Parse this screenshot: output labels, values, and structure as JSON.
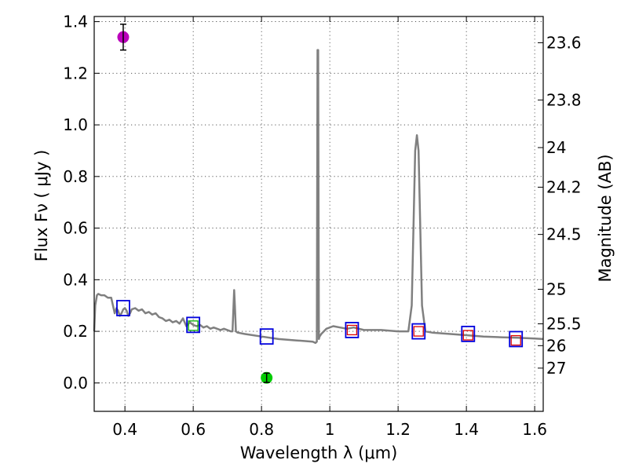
{
  "chart_data": {
    "type": "line",
    "title": "",
    "xlabel": "Wavelength  λ (μm)",
    "ylabel": "Flux  Fν  ( μJy )",
    "right_ylabel": "Magnitude (AB)",
    "xlim": [
      0.31,
      1.625
    ],
    "ylim": [
      -0.11,
      1.42
    ],
    "xticks": [
      0.4,
      0.6,
      0.8,
      1.0,
      1.2,
      1.4,
      1.6
    ],
    "xtick_labels": [
      "0.4",
      "0.6",
      "0.8",
      "1",
      "1.2",
      "1.4",
      "1.6"
    ],
    "yticks": [
      0.0,
      0.2,
      0.4,
      0.6,
      0.8,
      1.0,
      1.2,
      1.4
    ],
    "ytick_labels": [
      "0.0",
      "0.2",
      "0.4",
      "0.6",
      "0.8",
      "1.0",
      "1.2",
      "1.4"
    ],
    "right_ticks": [
      {
        "label": "23.6",
        "value": 23.6
      },
      {
        "label": "23.8",
        "value": 23.8
      },
      {
        "label": "24",
        "value": 24.0
      },
      {
        "label": "24.2",
        "value": 24.2
      },
      {
        "label": "24.5",
        "value": 24.5
      },
      {
        "label": "25",
        "value": 25.0
      },
      {
        "label": "25.5",
        "value": 25.5
      },
      {
        "label": "26",
        "value": 26.0
      },
      {
        "label": "27",
        "value": 27.0
      }
    ],
    "grid": true,
    "series": [
      {
        "name": "model spectrum",
        "kind": "line",
        "color": "#808080",
        "x": [
          0.31,
          0.313,
          0.318,
          0.322,
          0.33,
          0.34,
          0.35,
          0.36,
          0.365,
          0.37,
          0.375,
          0.38,
          0.385,
          0.39,
          0.395,
          0.4,
          0.405,
          0.41,
          0.415,
          0.42,
          0.43,
          0.44,
          0.45,
          0.46,
          0.47,
          0.48,
          0.49,
          0.5,
          0.51,
          0.52,
          0.53,
          0.54,
          0.55,
          0.56,
          0.57,
          0.58,
          0.59,
          0.6,
          0.61,
          0.62,
          0.63,
          0.64,
          0.65,
          0.66,
          0.67,
          0.68,
          0.69,
          0.7,
          0.71,
          0.715,
          0.718,
          0.72,
          0.722,
          0.725,
          0.73,
          0.75,
          0.8,
          0.85,
          0.9,
          0.95,
          0.958,
          0.962,
          0.964,
          0.966,
          0.968,
          0.97,
          0.975,
          0.99,
          1.01,
          1.03,
          1.05,
          1.07,
          1.1,
          1.15,
          1.2,
          1.23,
          1.24,
          1.25,
          1.255,
          1.26,
          1.265,
          1.27,
          1.28,
          1.3,
          1.35,
          1.4,
          1.45,
          1.5,
          1.55,
          1.6,
          1.625
        ],
        "y": [
          0.2,
          0.3,
          0.34,
          0.345,
          0.34,
          0.34,
          0.33,
          0.33,
          0.3,
          0.27,
          0.29,
          0.28,
          0.26,
          0.27,
          0.285,
          0.29,
          0.28,
          0.26,
          0.27,
          0.285,
          0.29,
          0.28,
          0.285,
          0.27,
          0.275,
          0.265,
          0.27,
          0.255,
          0.25,
          0.24,
          0.245,
          0.235,
          0.24,
          0.23,
          0.25,
          0.22,
          0.235,
          0.225,
          0.22,
          0.225,
          0.215,
          0.22,
          0.21,
          0.215,
          0.21,
          0.205,
          0.21,
          0.205,
          0.2,
          0.2,
          0.3,
          0.36,
          0.3,
          0.2,
          0.195,
          0.19,
          0.18,
          0.17,
          0.165,
          0.16,
          0.155,
          0.16,
          1.29,
          1.29,
          0.17,
          0.18,
          0.19,
          0.21,
          0.22,
          0.215,
          0.21,
          0.215,
          0.205,
          0.205,
          0.2,
          0.2,
          0.3,
          0.9,
          0.96,
          0.9,
          0.6,
          0.3,
          0.2,
          0.195,
          0.19,
          0.185,
          0.18,
          0.177,
          0.175,
          0.172,
          0.17
        ]
      },
      {
        "name": "model photometry (blue squares)",
        "kind": "square",
        "color": "#0000dd",
        "x": [
          0.395,
          0.6,
          0.815,
          1.065,
          1.26,
          1.405,
          1.545
        ],
        "y": [
          0.29,
          0.225,
          0.18,
          0.205,
          0.2,
          0.19,
          0.17
        ]
      },
      {
        "name": "observed photometry (red squares)",
        "kind": "small-square",
        "color": "#dd0000",
        "x": [
          1.065,
          1.26,
          1.405,
          1.545
        ],
        "y": [
          0.205,
          0.2,
          0.185,
          0.165
        ]
      },
      {
        "name": "observed photometry (green square)",
        "kind": "small-square",
        "color": "#00aa00",
        "x": [
          0.6
        ],
        "y": [
          0.222
        ]
      },
      {
        "name": "detection (magenta)",
        "kind": "circle-errorbar",
        "color": "#bb00bb",
        "x": [
          0.395
        ],
        "y": [
          1.34
        ],
        "yerr": [
          0.05
        ]
      },
      {
        "name": "detection (green)",
        "kind": "circle-errorbar",
        "color": "#00cc00",
        "x": [
          0.815
        ],
        "y": [
          0.02
        ],
        "yerr": [
          0.018
        ]
      }
    ]
  }
}
